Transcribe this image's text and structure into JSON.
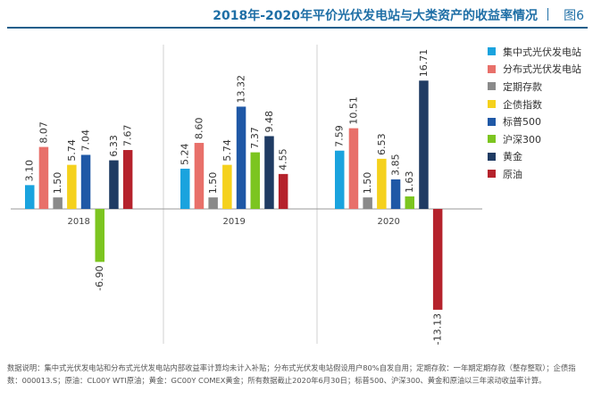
{
  "header": {
    "title": "2018年-2020年平价光伏发电站与大类资产的收益率情况",
    "figure_label": "图6"
  },
  "colors": {
    "accent": "#1f6fa6",
    "rule": "#1f5f8b"
  },
  "chart_data": {
    "type": "bar",
    "title": "2018年-2020年平价光伏发电站与大类资产的收益率情况",
    "categories": [
      "2018",
      "2019",
      "2020"
    ],
    "series": [
      {
        "name": "集中式光伏发电站",
        "color": "#1aa3de",
        "values": [
          3.1,
          5.24,
          7.59
        ],
        "labels": [
          "3.10",
          "5.24",
          "7.59"
        ]
      },
      {
        "name": "分布式光伏发电站",
        "color": "#e8706a",
        "values": [
          8.07,
          8.6,
          10.51
        ],
        "labels": [
          "8.07",
          "8.60",
          "10.51"
        ]
      },
      {
        "name": "定期存款",
        "color": "#8a8a8a",
        "values": [
          1.5,
          1.5,
          1.5
        ],
        "labels": [
          "1.50",
          "1.50",
          "1.50"
        ]
      },
      {
        "name": "企债指数",
        "color": "#f5d11c",
        "values": [
          5.74,
          5.74,
          6.53
        ],
        "labels": [
          "5.74",
          "5.74",
          "6.53"
        ]
      },
      {
        "name": "标普500",
        "color": "#1f58a6",
        "values": [
          7.04,
          13.32,
          3.85
        ],
        "labels": [
          "7.04",
          "13.32",
          "3.85"
        ]
      },
      {
        "name": "沪深300",
        "color": "#7cc520",
        "values": [
          -6.9,
          7.37,
          1.63
        ],
        "labels": [
          "-6.90",
          "7.37",
          "1.63"
        ]
      },
      {
        "name": "黄金",
        "color": "#1f3b63",
        "values": [
          6.33,
          9.48,
          16.71
        ],
        "labels": [
          "6.33",
          "9.48",
          "16.71"
        ]
      },
      {
        "name": "原油",
        "color": "#b5222c",
        "values": [
          7.67,
          4.55,
          -13.13
        ],
        "labels": [
          "7.67",
          "4.55",
          "-13.13"
        ]
      }
    ],
    "ylim": [
      -15,
      18
    ],
    "grid": false,
    "legend_position": "right"
  },
  "note": "数据说明：集中式光伏发电站和分布式光伏发电站内部收益率计算均未计入补贴；分布式光伏发电站假设用户80%自发自用；定期存款：一年期定期存款（整存整取）；企债指数：000013.S；原油：CL00Y WTI原油；黄金：GC00Y COMEX黄金；所有数据截止2020年6月30日；标普500、沪深300、黄金和原油以三年滚动收益率计算。"
}
